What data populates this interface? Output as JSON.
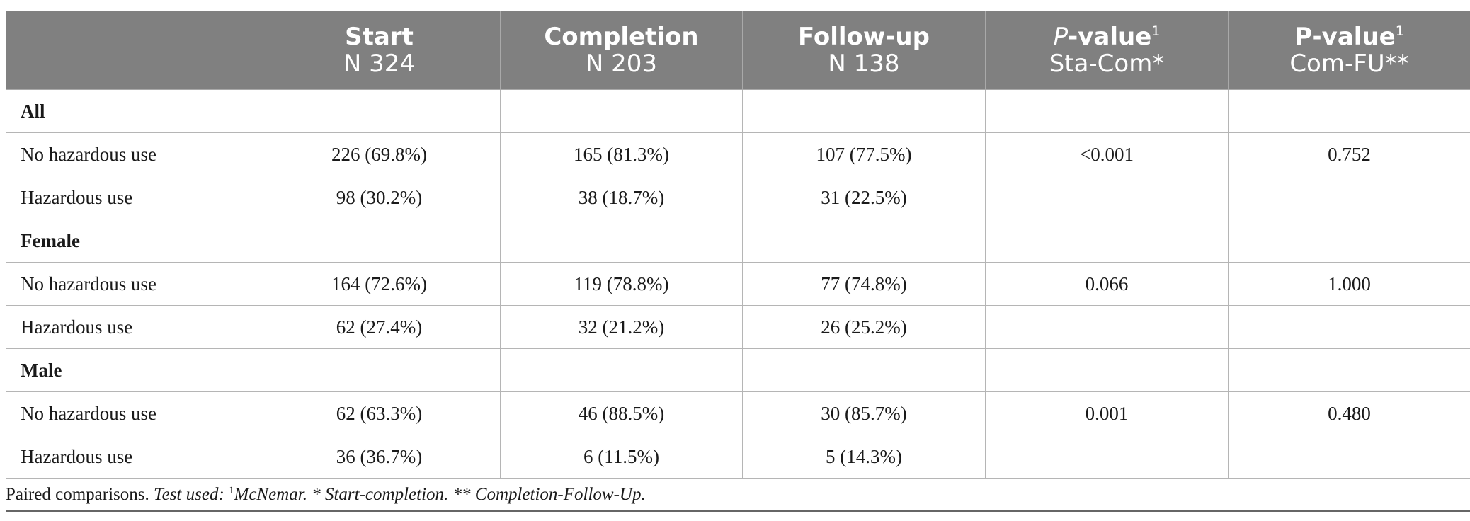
{
  "table": {
    "headers": [
      {
        "line1": "",
        "line2": ""
      },
      {
        "line1": "Start",
        "line2": "N 324"
      },
      {
        "line1": "Completion",
        "line2": "N 203"
      },
      {
        "line1": "Follow-up",
        "line2": "N 138"
      },
      {
        "line1_italic": "P",
        "line1_rest": "-value",
        "line1_sup": "1",
        "line2": "Sta-Com*"
      },
      {
        "line1": "P-value",
        "line1_sup": "1",
        "line2": "Com-FU**"
      }
    ],
    "rows": [
      {
        "label": "All",
        "group": true,
        "cells": [
          "",
          "",
          "",
          "",
          ""
        ]
      },
      {
        "label": "No hazardous use",
        "cells": [
          "226 (69.8%)",
          "165 (81.3%)",
          "107 (77.5%)",
          "<0.001",
          "0.752"
        ]
      },
      {
        "label": "Hazardous use",
        "cells": [
          "98 (30.2%)",
          "38 (18.7%)",
          "31 (22.5%)",
          "",
          ""
        ]
      },
      {
        "label": "Female",
        "group": true,
        "cells": [
          "",
          "",
          "",
          "",
          ""
        ]
      },
      {
        "label": "No hazardous use",
        "cells": [
          "164 (72.6%)",
          "119 (78.8%)",
          "77 (74.8%)",
          "0.066",
          "1.000"
        ]
      },
      {
        "label": "Hazardous use",
        "cells": [
          "62 (27.4%)",
          "32 (21.2%)",
          "26 (25.2%)",
          "",
          ""
        ]
      },
      {
        "label": "Male",
        "group": true,
        "cells": [
          "",
          "",
          "",
          "",
          ""
        ]
      },
      {
        "label": "No hazardous use",
        "cells": [
          "62 (63.3%)",
          "46 (88.5%)",
          "30 (85.7%)",
          "0.001",
          "0.480"
        ]
      },
      {
        "label": "Hazardous use",
        "cells": [
          "36 (36.7%)",
          "6 (11.5%)",
          "5 (14.3%)",
          "",
          ""
        ]
      }
    ]
  },
  "footnote": {
    "lead": "Paired comparisons. ",
    "test_label": "Test used: ",
    "sup": "1",
    "test_name": "McNemar.",
    "note1": " * Start-completion.",
    "note2": " ** Completion-Follow-Up."
  },
  "colors": {
    "header_background": "#808080",
    "header_text": "#ffffff",
    "grid": "#b5b5b5"
  }
}
